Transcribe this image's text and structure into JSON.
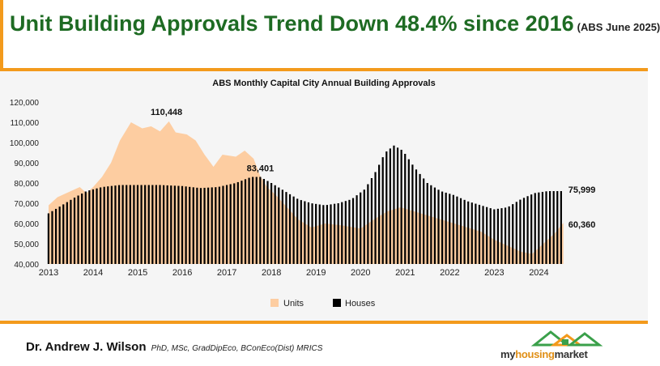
{
  "header": {
    "title": "Unit Building Approvals Trend Down 48.4% since 2016",
    "subtitle": "(ABS June 2025)"
  },
  "colors": {
    "units": "#fdcda1",
    "houses": "#000000",
    "accent": "#f39a1c",
    "title_green": "#1e6b23"
  },
  "chart_data": {
    "type": "area+bar",
    "title": "ABS Monthly Capital City Annual Building Approvals",
    "ylim": [
      40000,
      120000
    ],
    "y_ticks": [
      "40,000",
      "50,000",
      "60,000",
      "70,000",
      "80,000",
      "90,000",
      "100,000",
      "110,000",
      "120,000"
    ],
    "x_ticks": [
      "2013",
      "2014",
      "2015",
      "2016",
      "2017",
      "2018",
      "2019",
      "2020",
      "2021",
      "2022",
      "2023",
      "2024"
    ],
    "x_range": [
      2013.0,
      2025.5
    ],
    "legend": {
      "position": "bottom",
      "items": [
        "Units",
        "Houses"
      ]
    },
    "series": [
      {
        "name": "Units",
        "kind": "area",
        "points": [
          [
            2013.0,
            69000
          ],
          [
            2013.2,
            73000
          ],
          [
            2013.5,
            76000
          ],
          [
            2013.7,
            78000
          ],
          [
            2013.85,
            75000
          ],
          [
            2014.0,
            78000
          ],
          [
            2014.2,
            83000
          ],
          [
            2014.4,
            90000
          ],
          [
            2014.6,
            101000
          ],
          [
            2014.85,
            110000
          ],
          [
            2015.1,
            107000
          ],
          [
            2015.3,
            108000
          ],
          [
            2015.5,
            105500
          ],
          [
            2015.7,
            110448
          ],
          [
            2015.85,
            105000
          ],
          [
            2016.1,
            104000
          ],
          [
            2016.3,
            101000
          ],
          [
            2016.5,
            94000
          ],
          [
            2016.7,
            88000
          ],
          [
            2016.9,
            94000
          ],
          [
            2017.2,
            93000
          ],
          [
            2017.4,
            96000
          ],
          [
            2017.6,
            92000
          ],
          [
            2017.75,
            83401
          ],
          [
            2017.9,
            78000
          ],
          [
            2018.1,
            74000
          ],
          [
            2018.35,
            68000
          ],
          [
            2018.6,
            62000
          ],
          [
            2018.9,
            58000
          ],
          [
            2019.2,
            60000
          ],
          [
            2019.6,
            59000
          ],
          [
            2020.0,
            57500
          ],
          [
            2020.3,
            62000
          ],
          [
            2020.6,
            66000
          ],
          [
            2020.9,
            68000
          ],
          [
            2021.2,
            66000
          ],
          [
            2021.5,
            64000
          ],
          [
            2021.8,
            62000
          ],
          [
            2022.1,
            60000
          ],
          [
            2022.4,
            58000
          ],
          [
            2022.7,
            56000
          ],
          [
            2023.0,
            52000
          ],
          [
            2023.3,
            49000
          ],
          [
            2023.6,
            46000
          ],
          [
            2023.85,
            45000
          ],
          [
            2024.1,
            50000
          ],
          [
            2024.35,
            55000
          ],
          [
            2024.55,
            60360
          ]
        ]
      },
      {
        "name": "Houses",
        "kind": "bar",
        "points": [
          [
            2013.0,
            65000
          ],
          [
            2013.3,
            69000
          ],
          [
            2013.6,
            73000
          ],
          [
            2013.85,
            76000
          ],
          [
            2014.2,
            78000
          ],
          [
            2014.6,
            79000
          ],
          [
            2015.0,
            79000
          ],
          [
            2015.5,
            79000
          ],
          [
            2016.0,
            78500
          ],
          [
            2016.4,
            77500
          ],
          [
            2016.8,
            78000
          ],
          [
            2017.2,
            80000
          ],
          [
            2017.55,
            83000
          ],
          [
            2017.75,
            83000
          ],
          [
            2018.0,
            80000
          ],
          [
            2018.3,
            76000
          ],
          [
            2018.6,
            72000
          ],
          [
            2018.9,
            70000
          ],
          [
            2019.2,
            69000
          ],
          [
            2019.5,
            70000
          ],
          [
            2019.8,
            72000
          ],
          [
            2020.1,
            77000
          ],
          [
            2020.35,
            86000
          ],
          [
            2020.55,
            95000
          ],
          [
            2020.75,
            98500
          ],
          [
            2020.95,
            96000
          ],
          [
            2021.2,
            88000
          ],
          [
            2021.5,
            80000
          ],
          [
            2021.8,
            76000
          ],
          [
            2022.1,
            74000
          ],
          [
            2022.4,
            71000
          ],
          [
            2022.7,
            69000
          ],
          [
            2023.0,
            67000
          ],
          [
            2023.3,
            68000
          ],
          [
            2023.6,
            72000
          ],
          [
            2023.9,
            75000
          ],
          [
            2024.2,
            76000
          ],
          [
            2024.55,
            75999
          ]
        ]
      }
    ],
    "annotations": [
      {
        "label": "110,448",
        "x": 2015.7,
        "y": 110448
      },
      {
        "label": "83,401",
        "x": 2017.75,
        "y": 83401
      },
      {
        "label": "75,999",
        "x": 2024.55,
        "y": 75999
      },
      {
        "label": "60,360",
        "x": 2024.55,
        "y": 60360
      }
    ]
  },
  "footer": {
    "author": "Dr. Andrew J. Wilson",
    "credentials": "PhD, MSc, GradDipEco, BConEco(Dist) MRICS",
    "logo_text_a": "my",
    "logo_text_b": "housing",
    "logo_text_c": "market"
  }
}
